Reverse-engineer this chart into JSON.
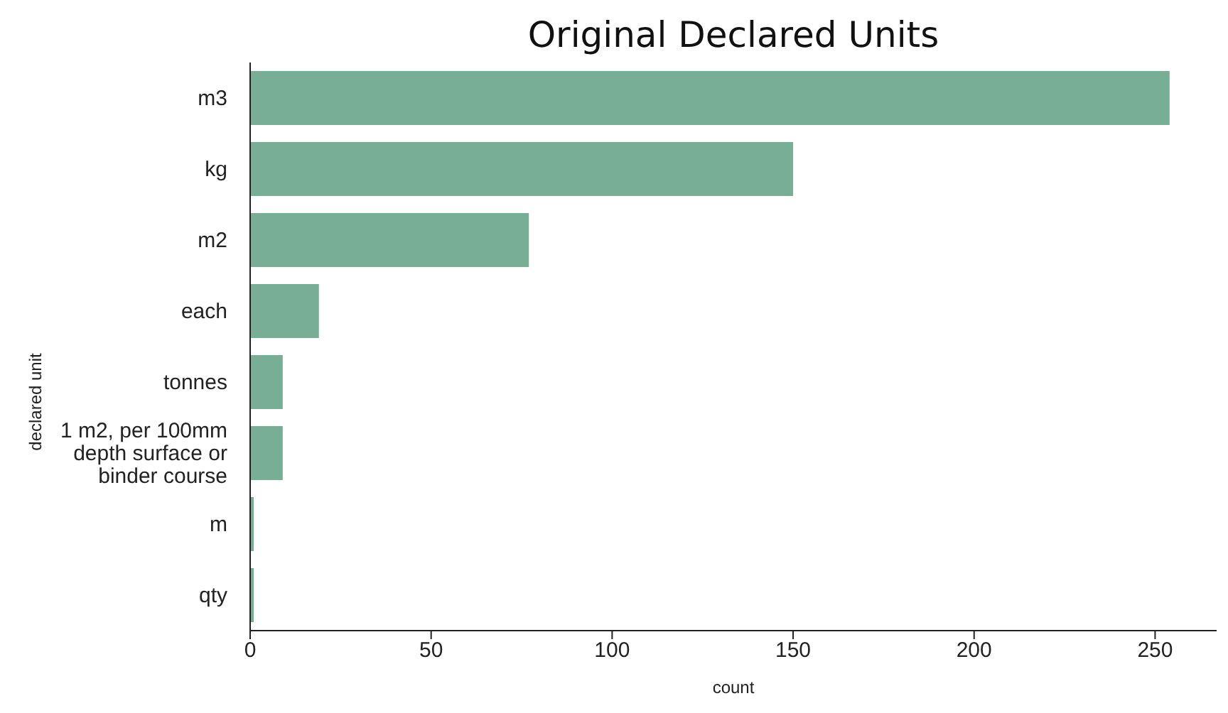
{
  "chart_data": {
    "type": "bar",
    "orientation": "horizontal",
    "title": "Original Declared Units",
    "xlabel": "count",
    "ylabel": "declared unit",
    "categories": [
      "m3",
      "kg",
      "m2",
      "each",
      "tonnes",
      "1 m2, per 100mm depth surface or binder course",
      "m",
      "qty"
    ],
    "values": [
      254,
      150,
      77,
      19,
      9,
      9,
      1,
      1
    ],
    "color": "#79ae96",
    "xlim": [
      0,
      267
    ],
    "xticks": [
      0,
      50,
      100,
      150,
      200,
      250
    ]
  }
}
